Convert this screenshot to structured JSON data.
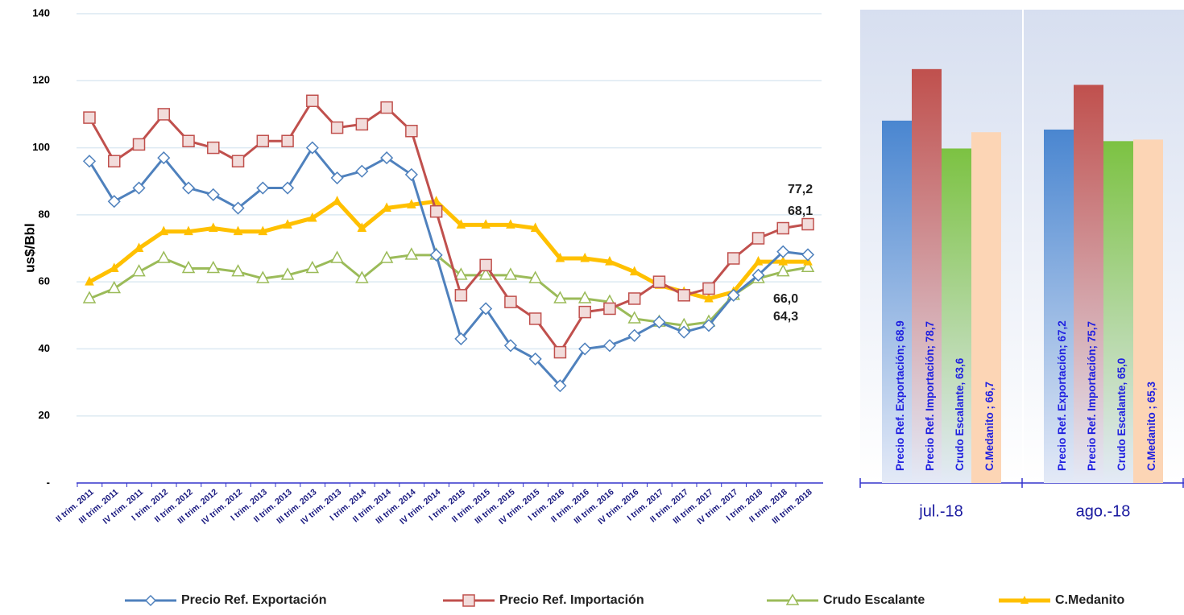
{
  "chart_data": [
    {
      "type": "line",
      "y_label": "us$/Bbl",
      "categories": [
        "II trim. 2011",
        "III trim. 2011",
        "IV trim. 2011",
        "I trim. 2012",
        "II trim. 2012",
        "III trim. 2012",
        "IV trim. 2012",
        "I trim. 2013",
        "II trim. 2013",
        "III trim. 2013",
        "IV trim. 2013",
        "I trim. 2014",
        "II trim. 2014",
        "III trim. 2014",
        "IV trim. 2014",
        "I trim. 2015",
        "II trim. 2015",
        "III trim. 2015",
        "IV trim. 2015",
        "I trim. 2016",
        "II trim. 2016",
        "III trim. 2016",
        "IV trim. 2016",
        "I trim. 2017",
        "II trim. 2017",
        "III trim. 2017",
        "IV trim. 2017",
        "I trim. 2018",
        "II trim. 2018",
        "III trim. 2018"
      ],
      "series": [
        {
          "name": "Precio Ref. Exportación",
          "color": "#4f81bd",
          "marker": "diamond",
          "values": [
            96,
            84,
            88,
            97,
            88,
            86,
            82,
            88,
            88,
            100,
            91,
            93,
            97,
            92,
            68,
            43,
            52,
            41,
            37,
            29,
            40,
            41,
            44,
            48,
            45,
            47,
            56,
            62,
            69,
            68.1
          ],
          "value_labels": [
            null,
            null,
            null,
            null,
            null,
            null,
            null,
            null,
            null,
            null,
            null,
            null,
            null,
            null,
            null,
            null,
            null,
            null,
            null,
            null,
            null,
            null,
            null,
            null,
            null,
            null,
            null,
            null,
            null,
            "68,1"
          ]
        },
        {
          "name": "Precio Ref. Importación",
          "color": "#c0504d",
          "marker": "square",
          "values": [
            109,
            96,
            101,
            110,
            102,
            100,
            96,
            102,
            102,
            114,
            106,
            107,
            112,
            105,
            81,
            56,
            65,
            54,
            49,
            39,
            51,
            52,
            55,
            60,
            56,
            58,
            67,
            73,
            76,
            77.2
          ],
          "value_labels": [
            null,
            null,
            null,
            null,
            null,
            null,
            null,
            null,
            null,
            null,
            null,
            null,
            null,
            null,
            null,
            null,
            null,
            null,
            null,
            null,
            null,
            null,
            null,
            null,
            null,
            null,
            null,
            null,
            null,
            "77,2"
          ]
        },
        {
          "name": "Crudo Escalante",
          "color": "#9bbb59",
          "marker": "triangle",
          "values": [
            55,
            58,
            63,
            67,
            64,
            64,
            63,
            61,
            62,
            64,
            67,
            61,
            67,
            68,
            68,
            62,
            62,
            62,
            61,
            55,
            55,
            54,
            49,
            48,
            47,
            48,
            56,
            61,
            63,
            64.3
          ],
          "value_labels": [
            null,
            null,
            null,
            null,
            null,
            null,
            null,
            null,
            null,
            null,
            null,
            null,
            null,
            null,
            null,
            null,
            null,
            null,
            null,
            null,
            null,
            null,
            null,
            null,
            null,
            null,
            null,
            null,
            null,
            "64,3"
          ]
        },
        {
          "name": "C.Medanito",
          "color": "#ffc000",
          "marker": "smalltriangle",
          "values": [
            60,
            64,
            70,
            75,
            75,
            76,
            75,
            75,
            77,
            79,
            84,
            76,
            82,
            83,
            84,
            77,
            77,
            77,
            76,
            67,
            67,
            66,
            63,
            59,
            57,
            55,
            57,
            66,
            66,
            66.0
          ],
          "value_labels": [
            null,
            null,
            null,
            null,
            null,
            null,
            null,
            null,
            null,
            null,
            null,
            null,
            null,
            null,
            null,
            null,
            null,
            null,
            null,
            null,
            null,
            null,
            null,
            null,
            null,
            null,
            null,
            null,
            null,
            "66,0"
          ]
        }
      ],
      "ylim": [
        0,
        140
      ],
      "yticks": [
        {
          "value": 0,
          "label": "-"
        },
        20,
        40,
        60,
        80,
        100,
        120,
        140
      ],
      "grid": true,
      "legend": "bottom"
    },
    {
      "type": "bar",
      "categories": [
        "jul.-18",
        "ago.-18"
      ],
      "ylim": [
        0,
        90
      ],
      "series": [
        {
          "color": "#4a86d0",
          "values": [
            68.9,
            67.2
          ],
          "value_labels": [
            "Precio Ref. Exportación; 68,9",
            "Precio Ref. Exportación; 67,2"
          ]
        },
        {
          "color": "#c0504d",
          "values": [
            78.7,
            75.7
          ],
          "value_labels": [
            "Precio Ref. Importación; 78,7",
            "Precio Ref. Importación; 75,7"
          ]
        },
        {
          "color": "#7cc242",
          "values": [
            63.6,
            65.0
          ],
          "value_labels": [
            "Crudo Escalante, 63,6",
            "Crudo Escalante, 65,0"
          ]
        },
        {
          "color": "#fcd5b5",
          "values": [
            66.7,
            65.3
          ],
          "value_labels": [
            "C.Medanito ; 66,7",
            "C.Medanito ; 65,3"
          ]
        }
      ]
    }
  ]
}
